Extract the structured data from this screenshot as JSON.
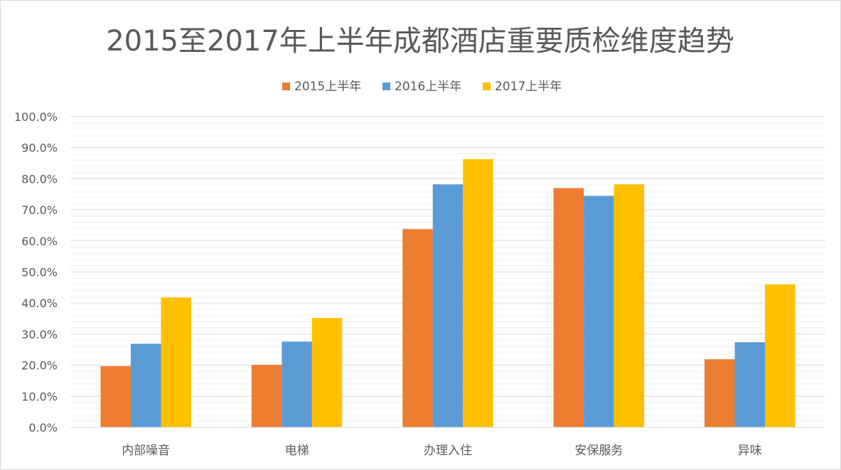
{
  "chart_data": {
    "type": "bar",
    "title": "2015至2017年上半年成都酒店重要质检维度趋势",
    "categories": [
      "内部噪音",
      "电梯",
      "办理入住",
      "安保服务",
      "异味"
    ],
    "series": [
      {
        "name": "2015上半年",
        "color": "#ED7D31",
        "values": [
          19.7,
          20.1,
          63.8,
          77.0,
          21.9
        ]
      },
      {
        "name": "2016上半年",
        "color": "#5B9BD5",
        "values": [
          26.9,
          27.6,
          78.2,
          74.5,
          27.4
        ]
      },
      {
        "name": "2017上半年",
        "color": "#FFC000",
        "values": [
          41.8,
          35.2,
          86.3,
          78.2,
          46.0
        ]
      }
    ],
    "yticks": [
      "0.0%",
      "10.0%",
      "20.0%",
      "30.0%",
      "40.0%",
      "50.0%",
      "60.0%",
      "70.0%",
      "80.0%",
      "90.0%",
      "100.0%"
    ],
    "ylim": [
      0,
      100
    ],
    "grid": true,
    "legend_position": "top"
  }
}
